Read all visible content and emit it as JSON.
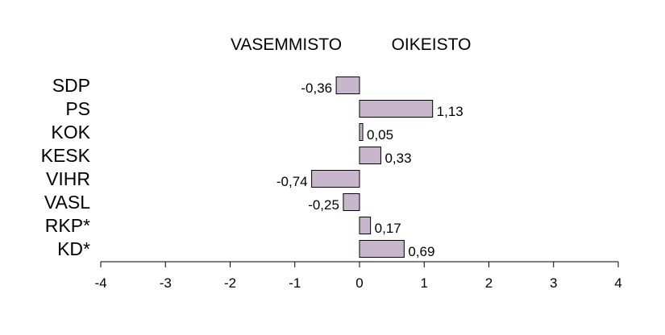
{
  "chart_data": {
    "type": "bar",
    "orientation": "horizontal",
    "categories": [
      "SDP",
      "PS",
      "KOK",
      "KESK",
      "VIHR",
      "VASL",
      "RKP*",
      "KD*"
    ],
    "values": [
      -0.36,
      1.13,
      0.05,
      0.33,
      -0.74,
      -0.25,
      0.17,
      0.69
    ],
    "value_labels": [
      "-0,36",
      "1,13",
      "0,05",
      "0,33",
      "-0,74",
      "-0,25",
      "0,17",
      "0,69"
    ],
    "side_labels": {
      "left": "VASEMMISTO",
      "right": "OIKEISTO"
    },
    "xlim": [
      -4,
      4
    ],
    "xticks": [
      -4,
      -3,
      -2,
      -1,
      0,
      1,
      2,
      3,
      4
    ],
    "xtick_labels": [
      "-4",
      "-3",
      "-2",
      "-1",
      "0",
      "1",
      "2",
      "3",
      "4"
    ],
    "grid": false,
    "bar_color": "#c8b6cc",
    "bar_edge_color": "#000000"
  }
}
